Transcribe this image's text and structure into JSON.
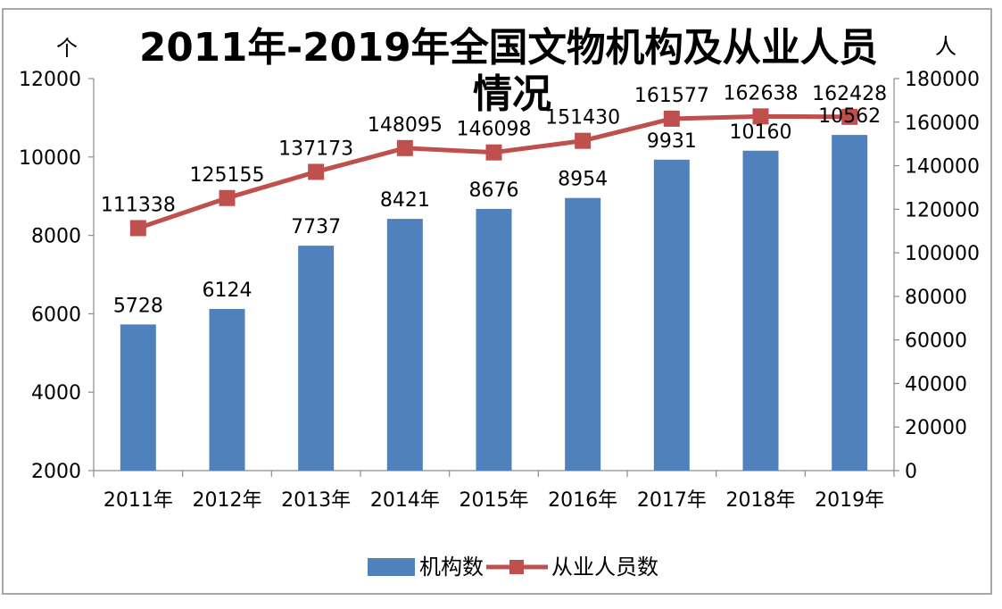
{
  "chart_data": {
    "type": "bar",
    "title": "2011年-2019年全国文物机构及从业人员情况",
    "title_line1": "2011年-2019年全国文物机构及从业人员",
    "title_line2": "情况",
    "ylabel_left": "个",
    "ylabel_right": "人",
    "ylim_left": [
      2000,
      12000
    ],
    "left_ticks": [
      "2000",
      "4000",
      "6000",
      "8000",
      "10000",
      "12000"
    ],
    "ylim_right": [
      0,
      180000
    ],
    "right_ticks": [
      "0",
      "20000",
      "40000",
      "60000",
      "80000",
      "100000",
      "120000",
      "140000",
      "160000",
      "180000"
    ],
    "categories": [
      "2011年",
      "2012年",
      "2013年",
      "2014年",
      "2015年",
      "2016年",
      "2017年",
      "2018年",
      "2019年"
    ],
    "series": [
      {
        "name": "机构数",
        "type": "bar",
        "axis": "left",
        "color": "#4F81BD",
        "values": [
          5728,
          6124,
          7737,
          8421,
          8676,
          8954,
          9931,
          10160,
          10562
        ],
        "labels": [
          "5728",
          "6124",
          "7737",
          "8421",
          "8676",
          "8954",
          "9931",
          "10160",
          "10562"
        ]
      },
      {
        "name": "从业人员数",
        "type": "line",
        "axis": "right",
        "color": "#C0504D",
        "values": [
          111338,
          125155,
          137173,
          148095,
          146098,
          151430,
          161577,
          162638,
          162428
        ],
        "labels": [
          "111338",
          "125155",
          "137173",
          "148095",
          "146098",
          "151430",
          "161577",
          "162638",
          "162428"
        ]
      }
    ],
    "legend_position": "bottom"
  }
}
